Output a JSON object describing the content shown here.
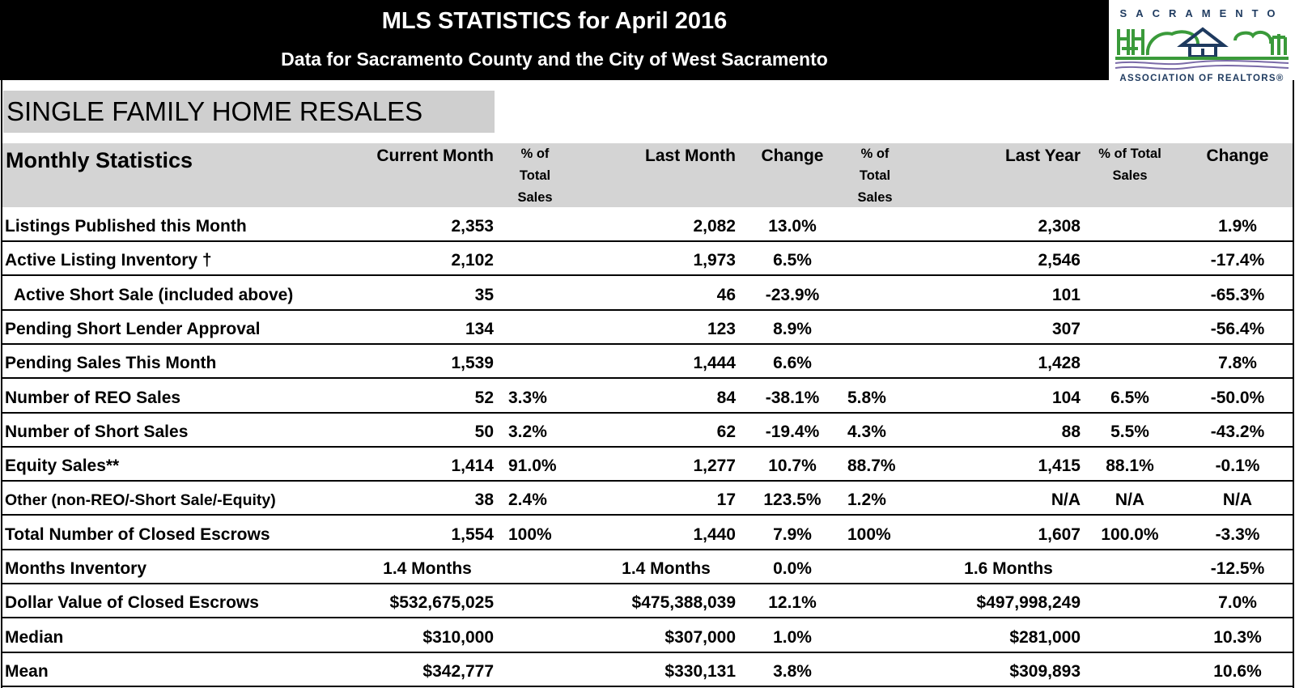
{
  "header": {
    "title": "MLS STATISTICS for April 2016",
    "subtitle": "Data for Sacramento County and the City of West Sacramento"
  },
  "logo": {
    "top_text": "SACRAMENTO",
    "bottom_text": "ASSOCIATION OF REALTORS®",
    "colors": {
      "green": "#3a9a3a",
      "navy": "#1e3a5f",
      "purple": "#7a6aa8"
    }
  },
  "section_title": "SINGLE FAMILY HOME RESALES",
  "columns": {
    "label": "Monthly Statistics",
    "current_month": "Current Month",
    "pct_total_sales_1": [
      "% of",
      "Total",
      "Sales"
    ],
    "last_month": "Last Month",
    "change_1": "Change",
    "pct_total_sales_2": [
      "% of",
      "Total",
      "Sales"
    ],
    "last_year": "Last Year",
    "pct_total_sales_3": [
      "% of  Total",
      "Sales"
    ],
    "change_2": "Change"
  },
  "rows": [
    {
      "label": "Listings Published this Month",
      "cur": "2,353",
      "cur_pct": "",
      "last": "2,082",
      "chg": "13.0%",
      "last_pct": "",
      "ly": "2,308",
      "ly_pct": "",
      "ly_chg": "1.9%"
    },
    {
      "label": "Active Listing Inventory †",
      "cur": "2,102",
      "cur_pct": "",
      "last": "1,973",
      "chg": "6.5%",
      "last_pct": "",
      "ly": "2,546",
      "ly_pct": "",
      "ly_chg": "-17.4%"
    },
    {
      "label": "  Active Short Sale (included above)",
      "cur": "35",
      "cur_pct": "",
      "last": "46",
      "chg": "-23.9%",
      "last_pct": "",
      "ly": "101",
      "ly_pct": "",
      "ly_chg": "-65.3%"
    },
    {
      "label": "Pending Short Lender Approval",
      "cur": "134",
      "cur_pct": "",
      "last": "123",
      "chg": "8.9%",
      "last_pct": "",
      "ly": "307",
      "ly_pct": "",
      "ly_chg": "-56.4%"
    },
    {
      "label": "Pending Sales This Month",
      "cur": "1,539",
      "cur_pct": "",
      "last": "1,444",
      "chg": "6.6%",
      "last_pct": "",
      "ly": "1,428",
      "ly_pct": "",
      "ly_chg": "7.8%"
    },
    {
      "label": "Number of REO Sales",
      "cur": "52",
      "cur_pct": "3.3%",
      "last": "84",
      "chg": "-38.1%",
      "last_pct": "5.8%",
      "ly": "104",
      "ly_pct": "6.5%",
      "ly_chg": "-50.0%"
    },
    {
      "label": "Number of Short Sales",
      "cur": "50",
      "cur_pct": "3.2%",
      "last": "62",
      "chg": "-19.4%",
      "last_pct": "4.3%",
      "ly": "88",
      "ly_pct": "5.5%",
      "ly_chg": "-43.2%"
    },
    {
      "label": "Equity Sales**",
      "cur": "1,414",
      "cur_pct": "91.0%",
      "last": "1,277",
      "chg": "10.7%",
      "last_pct": "88.7%",
      "ly": "1,415",
      "ly_pct": "88.1%",
      "ly_chg": "-0.1%"
    },
    {
      "label": "Other (non-REO/-Short Sale/-Equity)",
      "cur": "38",
      "cur_pct": "2.4%",
      "last": "17",
      "chg": "123.5%",
      "last_pct": "1.2%",
      "ly": "N/A",
      "ly_pct": "N/A",
      "ly_chg": "N/A"
    },
    {
      "label": "Total Number of Closed Escrows",
      "cur": "1,554",
      "cur_pct": "100%",
      "last": "1,440",
      "chg": "7.9%",
      "last_pct": "100%",
      "ly": "1,607",
      "ly_pct": "100.0%",
      "ly_chg": "-3.3%"
    },
    {
      "label": "Months Inventory",
      "cur": "1.4 Months",
      "cur_pct": "",
      "last": "1.4 Months",
      "chg": "0.0%",
      "last_pct": "",
      "ly": "1.6 Months",
      "ly_pct": "",
      "ly_chg": "-12.5%"
    },
    {
      "label": "Dollar Value of Closed Escrows",
      "cur": "$532,675,025",
      "cur_pct": "",
      "last": "$475,388,039",
      "chg": "12.1%",
      "last_pct": "",
      "ly": "$497,998,249",
      "ly_pct": "",
      "ly_chg": "7.0%"
    },
    {
      "label": "Median",
      "cur": "$310,000",
      "cur_pct": "",
      "last": "$307,000",
      "chg": "1.0%",
      "last_pct": "",
      "ly": "$281,000",
      "ly_pct": "",
      "ly_chg": "10.3%"
    },
    {
      "label": "Mean",
      "cur": "$342,777",
      "cur_pct": "",
      "last": "$330,131",
      "chg": "3.8%",
      "last_pct": "",
      "ly": "$309,893",
      "ly_pct": "",
      "ly_chg": "10.6%"
    }
  ]
}
